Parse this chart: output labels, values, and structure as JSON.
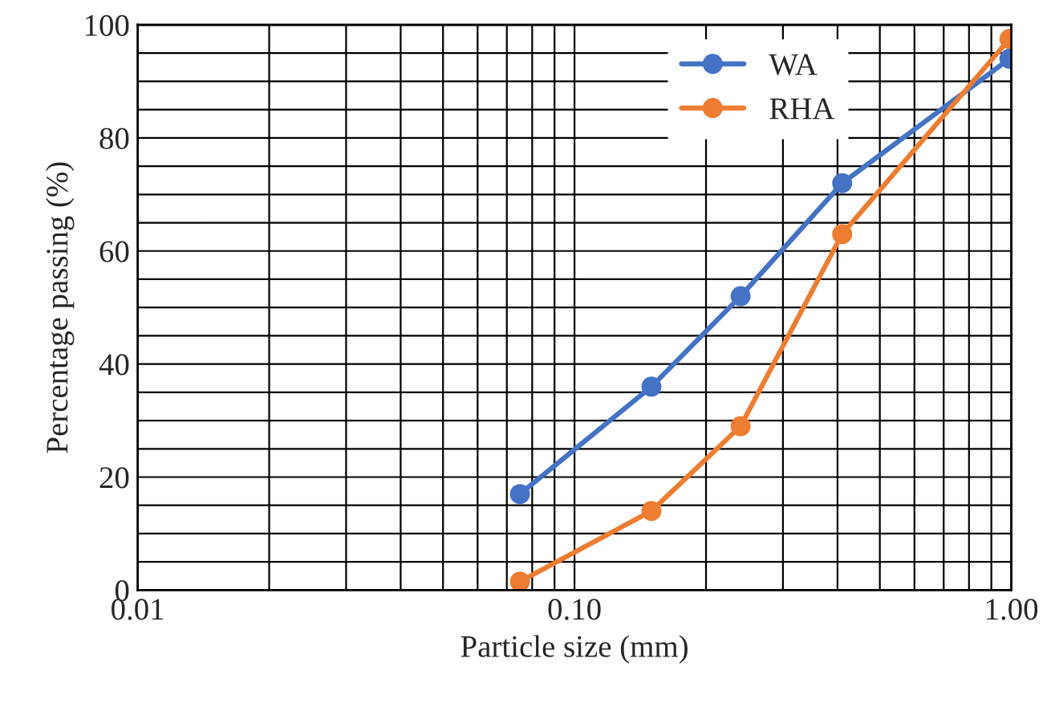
{
  "chart_data": {
    "type": "line",
    "xlabel": "Particle size (mm)",
    "ylabel": "Percentage passing (%)",
    "log": "x",
    "xlim": [
      0.01,
      1
    ],
    "xticks": [
      {
        "value": 0.01,
        "label": "0.01"
      },
      {
        "value": 0.1,
        "label": "0.10"
      },
      {
        "value": 1,
        "label": "1.00"
      }
    ],
    "ylim": [
      0,
      100
    ],
    "yticks": [
      0,
      20,
      40,
      60,
      80,
      100
    ],
    "grid": true,
    "legend": "top right",
    "marker": "circle",
    "line_style": "solid",
    "series": [
      {
        "name": "WA",
        "color": "#4472c4",
        "x": [
          0.075,
          0.15,
          0.24,
          0.41,
          0.99
        ],
        "values": [
          17,
          36,
          52,
          72,
          94
        ]
      },
      {
        "name": "RHA",
        "color": "#ed7d31",
        "x": [
          0.075,
          0.15,
          0.24,
          0.41,
          0.99
        ],
        "values": [
          1.5,
          14,
          29,
          63,
          97.5
        ]
      }
    ]
  }
}
